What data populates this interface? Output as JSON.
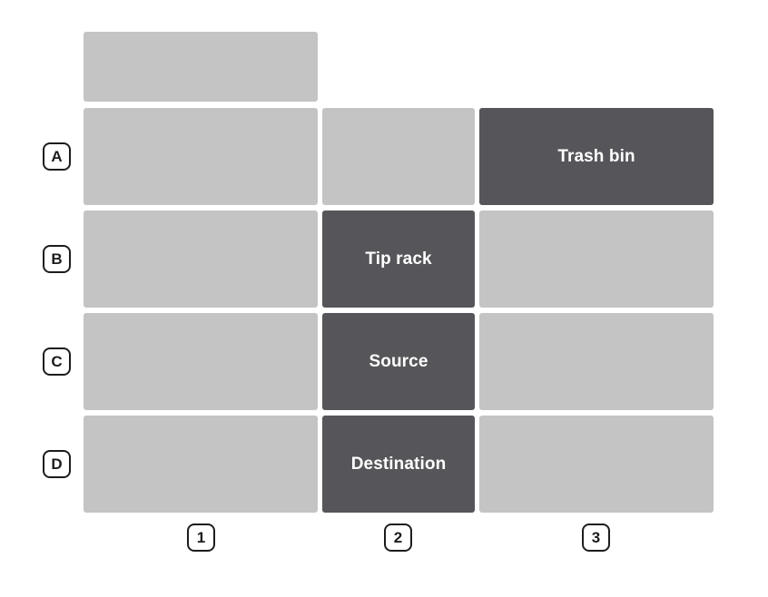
{
  "rows": [
    "A",
    "B",
    "C",
    "D"
  ],
  "columns": [
    "1",
    "2",
    "3"
  ],
  "deck": {
    "top_extension": {
      "label": ""
    },
    "A1": {
      "label": "",
      "occupied": false
    },
    "A2": {
      "label": "",
      "occupied": false
    },
    "A3": {
      "label": "Trash bin",
      "occupied": true
    },
    "B1": {
      "label": "",
      "occupied": false
    },
    "B2": {
      "label": "Tip rack",
      "occupied": true
    },
    "B3": {
      "label": "",
      "occupied": false
    },
    "C1": {
      "label": "",
      "occupied": false
    },
    "C2": {
      "label": "Source",
      "occupied": true
    },
    "C3": {
      "label": "",
      "occupied": false
    },
    "D1": {
      "label": "",
      "occupied": false
    },
    "D2": {
      "label": "Destination",
      "occupied": true
    },
    "D3": {
      "label": "",
      "occupied": false
    }
  },
  "colors": {
    "empty_slot": "#c4c4c4",
    "occupied_slot": "#56565a",
    "badge_border": "#1c1c1c"
  }
}
